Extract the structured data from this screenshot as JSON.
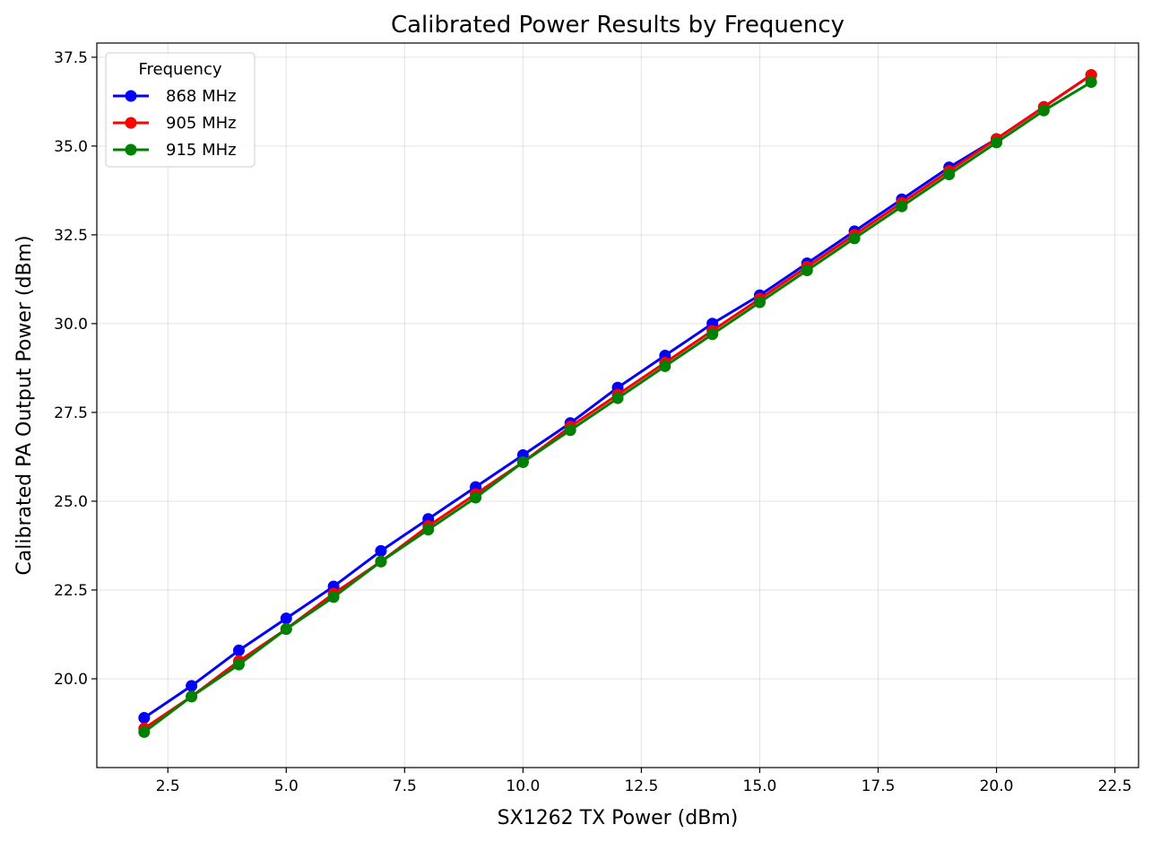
{
  "chart_data": {
    "type": "line",
    "title": "Calibrated Power Results by Frequency",
    "xlabel": "SX1262 TX Power (dBm)",
    "ylabel": "Calibrated PA Output Power (dBm)",
    "xlim": [
      1.0,
      23.0
    ],
    "ylim": [
      17.5,
      37.9
    ],
    "x_ticks": [
      2.5,
      5.0,
      7.5,
      10.0,
      12.5,
      15.0,
      17.5,
      20.0,
      22.5
    ],
    "x_tick_labels": [
      "2.5",
      "5.0",
      "7.5",
      "10.0",
      "12.5",
      "15.0",
      "17.5",
      "20.0",
      "22.5"
    ],
    "y_ticks": [
      20.0,
      22.5,
      25.0,
      27.5,
      30.0,
      32.5,
      35.0,
      37.5
    ],
    "y_tick_labels": [
      "20.0",
      "22.5",
      "25.0",
      "27.5",
      "30.0",
      "32.5",
      "35.0",
      "37.5"
    ],
    "grid": true,
    "legend": {
      "title": "Frequency",
      "position": "top-left"
    },
    "x": [
      2,
      3,
      4,
      5,
      6,
      7,
      8,
      9,
      10,
      11,
      12,
      13,
      14,
      15,
      16,
      17,
      18,
      19,
      20,
      21,
      22
    ],
    "series": [
      {
        "name": "868 MHz",
        "color": "#0000ff",
        "values": [
          18.9,
          19.8,
          20.8,
          21.7,
          22.6,
          23.6,
          24.5,
          25.4,
          26.3,
          27.2,
          28.2,
          29.1,
          30.0,
          30.8,
          31.7,
          32.6,
          33.5,
          34.4,
          35.2,
          36.1,
          37.0
        ]
      },
      {
        "name": "905 MHz",
        "color": "#ff0000",
        "values": [
          18.6,
          19.5,
          20.5,
          21.4,
          22.4,
          23.3,
          24.3,
          25.2,
          26.1,
          27.1,
          28.0,
          28.9,
          29.8,
          30.7,
          31.6,
          32.5,
          33.4,
          34.3,
          35.2,
          36.1,
          37.0
        ]
      },
      {
        "name": "915 MHz",
        "color": "#008000",
        "values": [
          18.5,
          19.5,
          20.4,
          21.4,
          22.3,
          23.3,
          24.2,
          25.1,
          26.1,
          27.0,
          27.9,
          28.8,
          29.7,
          30.6,
          31.5,
          32.4,
          33.3,
          34.2,
          35.1,
          36.0,
          36.8
        ]
      }
    ]
  }
}
